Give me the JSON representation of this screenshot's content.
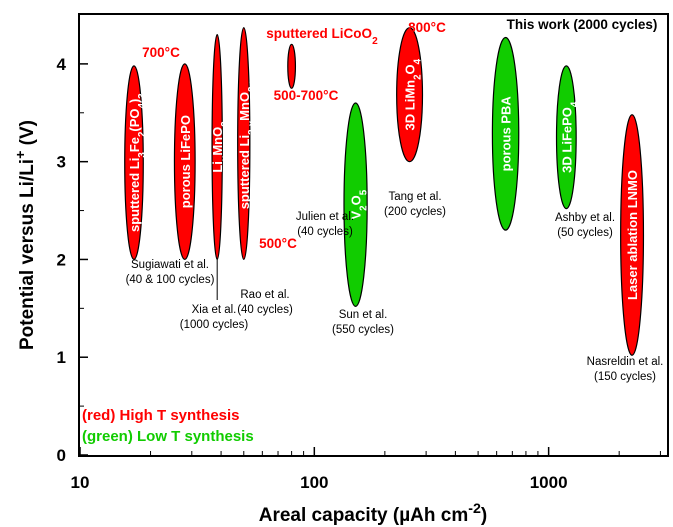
{
  "chart_data": {
    "type": "scatter",
    "xlabel_parts": [
      "Areal capacity (µAh cm",
      "-2",
      ")"
    ],
    "ylabel_parts": [
      "Potential versus Li/Li",
      "+",
      " (V)"
    ],
    "x_scale": "log",
    "xlim": [
      10,
      3200
    ],
    "ylim": [
      0,
      4.5
    ],
    "x_ticks": [
      10,
      100,
      1000
    ],
    "x_tick_labels": [
      "10",
      "100",
      "1000"
    ],
    "y_ticks": [
      0,
      1,
      2,
      3,
      4
    ],
    "y_tick_labels": [
      "0",
      "1",
      "2",
      "3",
      "4"
    ],
    "grid": false,
    "legend_position": "bottom-left",
    "legend": [
      {
        "name": "(red) High T synthesis",
        "color": "#ff0000"
      },
      {
        "name": "(green) Low T synthesis",
        "color": "#11cc00"
      }
    ],
    "series": [
      {
        "name": "sputtered Li3Fe2(PO4)3",
        "label_parts": [
          [
            "sputtered Li",
            ""
          ],
          [
            "3",
            "sub"
          ],
          [
            "Fe",
            ""
          ],
          [
            "2",
            "sub"
          ],
          [
            "(PO",
            ""
          ],
          [
            "4",
            "sub"
          ],
          [
            ")",
            ""
          ],
          [
            "3",
            "sub"
          ]
        ],
        "synthesis": "high",
        "x_center": 17,
        "x_range": [
          15.5,
          18.6
        ],
        "y_range": [
          2.0,
          3.98
        ],
        "cite": [
          "Sugiawati et al.",
          "(40 & 100 cycles)"
        ]
      },
      {
        "name": "porous LiFePO",
        "label_parts": [
          [
            "porous LiFePO",
            ""
          ]
        ],
        "synthesis": "high",
        "x_center": 28,
        "x_range": [
          25.3,
          31
        ],
        "y_range": [
          2.0,
          4.0
        ],
        "cite": []
      },
      {
        "name": "LixMnO2",
        "label_parts": [
          [
            "Li",
            ""
          ],
          [
            "x",
            "sub"
          ],
          [
            "MnO",
            ""
          ],
          [
            "2",
            "sub"
          ]
        ],
        "synthesis": "high",
        "x_center": 38.5,
        "x_range": [
          36.6,
          40.5
        ],
        "y_range": [
          2.0,
          4.3
        ],
        "cite": [
          "Xia et al.",
          "(1000 cycles)"
        ]
      },
      {
        "name": "sputtered Li2-xMnO3-y",
        "label_parts": [
          [
            "sputtered Li",
            ""
          ],
          [
            "2-x",
            "sub"
          ],
          [
            "MnO",
            ""
          ],
          [
            "3-y",
            "sub"
          ]
        ],
        "synthesis": "high",
        "x_center": 50,
        "x_range": [
          47.1,
          53.1
        ],
        "y_range": [
          2.0,
          4.37
        ],
        "cite": [
          "Rao et al.",
          "(40 cycles)"
        ]
      },
      {
        "name": "sputtered LiCoO2",
        "label_parts": [],
        "synthesis": "high",
        "x_center": 80,
        "x_range": [
          77,
          83
        ],
        "y_range": [
          3.75,
          4.2
        ],
        "cite": [
          "Julien et al.",
          "(40 cycles)"
        ]
      },
      {
        "name": "V2O5",
        "label_parts": [
          [
            "V",
            ""
          ],
          [
            "2",
            "sub"
          ],
          [
            "O",
            ""
          ],
          [
            "5",
            "sub"
          ]
        ],
        "synthesis": "low",
        "x_center": 150,
        "x_range": [
          133,
          167
        ],
        "y_range": [
          1.52,
          3.6
        ],
        "cite": [
          "Sun et al.",
          "(550 cycles)"
        ]
      },
      {
        "name": "3D LiMn2O4",
        "label_parts": [
          [
            "3D LiMn",
            ""
          ],
          [
            "2",
            "sub"
          ],
          [
            "O",
            ""
          ],
          [
            "4",
            "sub"
          ]
        ],
        "synthesis": "high",
        "x_center": 255,
        "x_range": [
          225,
          290
        ],
        "y_range": [
          3.0,
          4.37
        ],
        "cite": [
          "Tang et al.",
          "(200 cycles)"
        ]
      },
      {
        "name": "porous PBA",
        "label_parts": [
          [
            "porous PBA",
            ""
          ]
        ],
        "synthesis": "low",
        "x_center": 655,
        "x_range": [
          575,
          745
        ],
        "y_range": [
          2.3,
          4.27
        ],
        "cite": []
      },
      {
        "name": "3D LiFePO4",
        "label_parts": [
          [
            "3D LiFePO",
            ""
          ],
          [
            "4",
            "sub"
          ]
        ],
        "synthesis": "low",
        "x_center": 1190,
        "x_range": [
          1080,
          1310
        ],
        "y_range": [
          2.52,
          3.98
        ],
        "cite": [
          "Ashby et al.",
          "(50 cycles)"
        ]
      },
      {
        "name": "Laser ablation LNMO",
        "label_parts": [
          [
            "Laser ablation LNMO",
            ""
          ]
        ],
        "synthesis": "high",
        "x_center": 2270,
        "x_range": [
          2030,
          2540
        ],
        "y_range": [
          1.02,
          3.48
        ],
        "cite": [
          "Nasreldin et al.",
          "(150 cycles)"
        ]
      }
    ],
    "annotations": [
      {
        "id": "t700",
        "parts": [
          [
            "700°C",
            ""
          ]
        ],
        "color": "#ff0000"
      },
      {
        "id": "t800",
        "parts": [
          [
            "800°C",
            ""
          ]
        ],
        "color": "#ff0000"
      },
      {
        "id": "t500",
        "parts": [
          [
            "500°C",
            ""
          ]
        ],
        "color": "#ff0000"
      },
      {
        "id": "t500_700",
        "parts": [
          [
            "500-700°C",
            ""
          ]
        ],
        "color": "#ff0000"
      },
      {
        "id": "licoo2",
        "parts": [
          [
            "sputtered LiCoO",
            ""
          ],
          [
            "2",
            "sub"
          ]
        ],
        "color": "#ff0000"
      },
      {
        "id": "thiswork",
        "parts": [
          [
            "This work (2000 cycles)",
            ""
          ]
        ],
        "color": "#000000"
      }
    ],
    "colors": {
      "high": "#ff0000",
      "low": "#11cc00",
      "axis": "#000000"
    }
  }
}
